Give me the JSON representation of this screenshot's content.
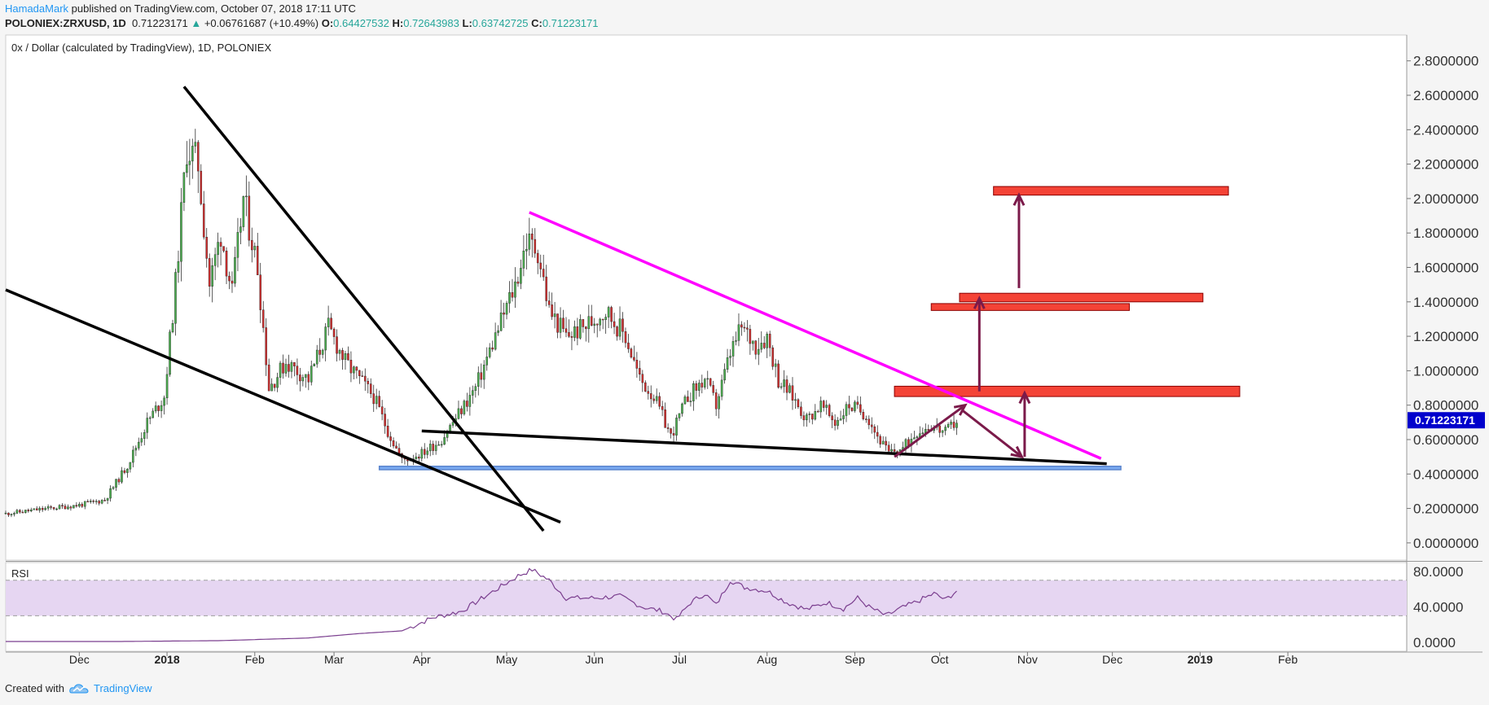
{
  "header": {
    "author": "HamadaMark",
    "published_text": "published on TradingView.com, October 07, 2018 17:11 UTC",
    "symbol": "POLONIEX:ZRXUSD, 1D",
    "last": "0.71223171",
    "change_arrow": "▲",
    "change": "+0.06761687 (+10.49%)",
    "o_label": "O:",
    "o_value": "0.64427532",
    "h_label": "H:",
    "h_value": "0.72643983",
    "l_label": "L:",
    "l_value": "0.63742725",
    "c_label": "C:",
    "c_value": "0.71223171"
  },
  "footer": {
    "created_with": "Created with",
    "brand": "TradingView"
  },
  "colors": {
    "up": "#26a69a",
    "down": "#ef5350",
    "candle_up": "#4caf50",
    "candle_down": "#d32f2f",
    "trend_black": "#000000",
    "trend_magenta": "#ff00ff",
    "zone_red": "#f44336",
    "zone_blue": "#4a78c8",
    "arrow": "#7b1a4a",
    "price_tag": "#0000cc",
    "rsi_line": "#7b3f8f",
    "rsi_band": "#e6d6f2"
  },
  "chart_data": {
    "type": "candlestick",
    "title": "0x / Dollar (calculated by TradingView), 1D, POLONIEX",
    "x_range": [
      "2017-11-05",
      "2019-03-15"
    ],
    "x_ticks": [
      {
        "label": "Dec",
        "date": "2017-12-01",
        "bold": false
      },
      {
        "label": "2018",
        "date": "2018-01-01",
        "bold": true
      },
      {
        "label": "Feb",
        "date": "2018-02-01",
        "bold": false
      },
      {
        "label": "Mar",
        "date": "2018-03-01",
        "bold": false
      },
      {
        "label": "Apr",
        "date": "2018-04-01",
        "bold": false
      },
      {
        "label": "May",
        "date": "2018-05-01",
        "bold": false
      },
      {
        "label": "Jun",
        "date": "2018-06-01",
        "bold": false
      },
      {
        "label": "Jul",
        "date": "2018-07-01",
        "bold": false
      },
      {
        "label": "Aug",
        "date": "2018-08-01",
        "bold": false
      },
      {
        "label": "Sep",
        "date": "2018-09-01",
        "bold": false
      },
      {
        "label": "Oct",
        "date": "2018-10-01",
        "bold": false
      },
      {
        "label": "Nov",
        "date": "2018-11-01",
        "bold": false
      },
      {
        "label": "Dec",
        "date": "2018-12-01",
        "bold": false
      },
      {
        "label": "2019",
        "date": "2019-01-01",
        "bold": true
      },
      {
        "label": "Feb",
        "date": "2019-02-01",
        "bold": false
      }
    ],
    "price_axis": {
      "ylim": [
        -0.1,
        2.95
      ],
      "ticks": [
        "0.0000000",
        "0.2000000",
        "0.4000000",
        "0.6000000",
        "0.8000000",
        "1.0000000",
        "1.2000000",
        "1.4000000",
        "1.6000000",
        "1.8000000",
        "2.0000000",
        "2.2000000",
        "2.4000000",
        "2.6000000",
        "2.8000000"
      ],
      "tick_values": [
        0,
        0.2,
        0.4,
        0.6,
        0.8,
        1.0,
        1.2,
        1.4,
        1.6,
        1.8,
        2.0,
        2.2,
        2.4,
        2.6,
        2.8
      ]
    },
    "last_price": {
      "value": 0.71223171,
      "label": "0.71223171"
    },
    "price_path": [
      [
        "2017-11-05",
        0.17
      ],
      [
        "2017-11-20",
        0.2
      ],
      [
        "2017-12-01",
        0.22
      ],
      [
        "2017-12-10",
        0.25
      ],
      [
        "2017-12-18",
        0.45
      ],
      [
        "2017-12-25",
        0.7
      ],
      [
        "2017-12-31",
        0.85
      ],
      [
        "2018-01-04",
        1.5
      ],
      [
        "2018-01-08",
        2.3
      ],
      [
        "2018-01-12",
        2.2
      ],
      [
        "2018-01-16",
        1.5
      ],
      [
        "2018-01-20",
        1.8
      ],
      [
        "2018-01-24",
        1.45
      ],
      [
        "2018-01-28",
        2.0
      ],
      [
        "2018-02-02",
        1.6
      ],
      [
        "2018-02-06",
        0.9
      ],
      [
        "2018-02-12",
        1.05
      ],
      [
        "2018-02-20",
        0.95
      ],
      [
        "2018-02-27",
        1.25
      ],
      [
        "2018-03-05",
        1.05
      ],
      [
        "2018-03-15",
        0.85
      ],
      [
        "2018-03-20",
        0.65
      ],
      [
        "2018-03-25",
        0.48
      ],
      [
        "2018-04-01",
        0.52
      ],
      [
        "2018-04-08",
        0.6
      ],
      [
        "2018-04-14",
        0.75
      ],
      [
        "2018-04-20",
        0.9
      ],
      [
        "2018-04-27",
        1.2
      ],
      [
        "2018-05-04",
        1.5
      ],
      [
        "2018-05-08",
        1.75
      ],
      [
        "2018-05-12",
        1.7
      ],
      [
        "2018-05-16",
        1.35
      ],
      [
        "2018-05-22",
        1.2
      ],
      [
        "2018-05-28",
        1.25
      ],
      [
        "2018-06-05",
        1.35
      ],
      [
        "2018-06-12",
        1.2
      ],
      [
        "2018-06-17",
        0.95
      ],
      [
        "2018-06-22",
        0.85
      ],
      [
        "2018-06-28",
        0.62
      ],
      [
        "2018-07-04",
        0.85
      ],
      [
        "2018-07-10",
        0.95
      ],
      [
        "2018-07-14",
        0.8
      ],
      [
        "2018-07-19",
        1.1
      ],
      [
        "2018-07-23",
        1.25
      ],
      [
        "2018-07-28",
        1.15
      ],
      [
        "2018-08-01",
        1.2
      ],
      [
        "2018-08-05",
        0.95
      ],
      [
        "2018-08-10",
        0.85
      ],
      [
        "2018-08-15",
        0.72
      ],
      [
        "2018-08-20",
        0.8
      ],
      [
        "2018-08-25",
        0.7
      ],
      [
        "2018-08-30",
        0.8
      ],
      [
        "2018-09-05",
        0.75
      ],
      [
        "2018-09-09",
        0.62
      ],
      [
        "2018-09-13",
        0.52
      ],
      [
        "2018-09-18",
        0.55
      ],
      [
        "2018-09-23",
        0.65
      ],
      [
        "2018-09-28",
        0.68
      ],
      [
        "2018-10-03",
        0.64
      ],
      [
        "2018-10-07",
        0.71
      ]
    ],
    "annotations": {
      "black_lines": [
        {
          "from": [
            "2017-11-05",
            1.47
          ],
          "to": [
            "2018-05-20",
            0.12
          ]
        },
        {
          "from": [
            "2018-01-07",
            2.65
          ],
          "to": [
            "2018-05-14",
            0.07
          ]
        },
        {
          "from": [
            "2018-04-01",
            0.65
          ],
          "to": [
            "2018-11-29",
            0.46
          ]
        }
      ],
      "magenta_line": {
        "from": [
          "2018-05-09",
          1.92
        ],
        "to": [
          "2018-11-27",
          0.49
        ]
      },
      "red_zones": [
        {
          "x1": "2018-10-20",
          "x2": "2019-01-11",
          "y1": 2.07,
          "y2": 2.02
        },
        {
          "x1": "2018-10-08",
          "x2": "2019-01-02",
          "y1": 1.45,
          "y2": 1.4
        },
        {
          "x1": "2018-09-28",
          "x2": "2018-12-07",
          "y1": 1.39,
          "y2": 1.35
        },
        {
          "x1": "2018-09-15",
          "x2": "2019-01-15",
          "y1": 0.91,
          "y2": 0.85
        }
      ],
      "blue_zone": {
        "x1": "2018-03-17",
        "x2": "2018-12-04",
        "y1": 0.445,
        "y2": 0.425
      },
      "arrows": [
        {
          "from": [
            "2018-09-15",
            0.5
          ],
          "to": [
            "2018-10-10",
            0.8
          ]
        },
        {
          "from": [
            "2018-10-09",
            0.77
          ],
          "to": [
            "2018-10-30",
            0.5
          ]
        },
        {
          "from": [
            "2018-10-31",
            0.5
          ],
          "to": [
            "2018-10-31",
            0.87
          ]
        },
        {
          "from": [
            "2018-10-15",
            0.88
          ],
          "to": [
            "2018-10-15",
            1.42
          ]
        },
        {
          "from": [
            "2018-10-29",
            1.48
          ],
          "to": [
            "2018-10-29",
            2.02
          ]
        }
      ]
    },
    "rsi": {
      "label": "RSI",
      "ylim": [
        -10,
        90
      ],
      "ticks": [
        "80.0000",
        "40.0000",
        "0.0000"
      ],
      "tick_values": [
        80,
        40,
        0
      ],
      "band": [
        30,
        70
      ],
      "path": [
        [
          "2017-11-05",
          1
        ],
        [
          "2017-12-15",
          1
        ],
        [
          "2018-01-20",
          2
        ],
        [
          "2018-02-20",
          5
        ],
        [
          "2018-03-10",
          10
        ],
        [
          "2018-03-25",
          13
        ],
        [
          "2018-04-05",
          28
        ],
        [
          "2018-04-15",
          35
        ],
        [
          "2018-04-25",
          55
        ],
        [
          "2018-05-05",
          75
        ],
        [
          "2018-05-10",
          82
        ],
        [
          "2018-05-16",
          70
        ],
        [
          "2018-05-22",
          50
        ],
        [
          "2018-06-01",
          50
        ],
        [
          "2018-06-10",
          52
        ],
        [
          "2018-06-18",
          40
        ],
        [
          "2018-06-25",
          35
        ],
        [
          "2018-06-30",
          26
        ],
        [
          "2018-07-05",
          45
        ],
        [
          "2018-07-10",
          55
        ],
        [
          "2018-07-14",
          42
        ],
        [
          "2018-07-19",
          70
        ],
        [
          "2018-07-24",
          62
        ],
        [
          "2018-08-01",
          58
        ],
        [
          "2018-08-08",
          45
        ],
        [
          "2018-08-15",
          37
        ],
        [
          "2018-08-22",
          45
        ],
        [
          "2018-08-28",
          38
        ],
        [
          "2018-09-02",
          50
        ],
        [
          "2018-09-06",
          40
        ],
        [
          "2018-09-12",
          30
        ],
        [
          "2018-09-17",
          38
        ],
        [
          "2018-09-23",
          46
        ],
        [
          "2018-09-29",
          55
        ],
        [
          "2018-10-03",
          48
        ],
        [
          "2018-10-07",
          58
        ]
      ]
    }
  }
}
